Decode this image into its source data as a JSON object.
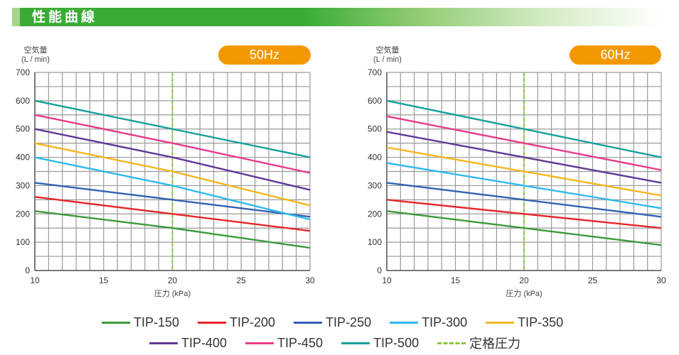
{
  "header": {
    "title": "性能曲線"
  },
  "legend": [
    {
      "name": "TIP-150",
      "color": "#3a9b3a"
    },
    {
      "name": "TIP-200",
      "color": "#e8262a"
    },
    {
      "name": "TIP-250",
      "color": "#2f62b3"
    },
    {
      "name": "TIP-300",
      "color": "#2fb9ee"
    },
    {
      "name": "TIP-350",
      "color": "#f6b51e"
    },
    {
      "name": "TIP-400",
      "color": "#63389a"
    },
    {
      "name": "TIP-450",
      "color": "#e83a8c"
    },
    {
      "name": "TIP-500",
      "color": "#14a19b"
    },
    {
      "name": "定格圧力",
      "color": "#8cc63f",
      "dashed": true
    }
  ],
  "chart_data": [
    {
      "type": "line",
      "title": "50Hz",
      "ylabel_line1": "空気量",
      "ylabel_line2": "(L / min)",
      "xlabel": "圧力 (kPa)",
      "xlim": [
        10,
        30
      ],
      "ylim": [
        0,
        700
      ],
      "xticks": [
        10,
        15,
        20,
        25,
        30
      ],
      "yticks": [
        0,
        100,
        200,
        300,
        400,
        500,
        600,
        700
      ],
      "grid": true,
      "rated_pressure": 20,
      "x": [
        10,
        20,
        30
      ],
      "series": [
        {
          "name": "TIP-150",
          "values": [
            210,
            150,
            80
          ]
        },
        {
          "name": "TIP-200",
          "values": [
            260,
            200,
            140
          ]
        },
        {
          "name": "TIP-250",
          "values": [
            310,
            250,
            190
          ]
        },
        {
          "name": "TIP-300",
          "values": [
            400,
            300,
            180
          ]
        },
        {
          "name": "TIP-350",
          "values": [
            450,
            350,
            230
          ]
        },
        {
          "name": "TIP-400",
          "values": [
            500,
            400,
            285
          ]
        },
        {
          "name": "TIP-450",
          "values": [
            550,
            450,
            345
          ]
        },
        {
          "name": "TIP-500",
          "values": [
            600,
            500,
            400
          ]
        }
      ]
    },
    {
      "type": "line",
      "title": "60Hz",
      "ylabel_line1": "空気量",
      "ylabel_line2": "(L / min)",
      "xlabel": "圧力 (kPa)",
      "xlim": [
        10,
        30
      ],
      "ylim": [
        0,
        700
      ],
      "xticks": [
        10,
        15,
        20,
        25,
        30
      ],
      "yticks": [
        0,
        100,
        200,
        300,
        400,
        500,
        600,
        700
      ],
      "grid": true,
      "rated_pressure": 20,
      "x": [
        10,
        20,
        30
      ],
      "series": [
        {
          "name": "TIP-150",
          "values": [
            210,
            150,
            90
          ]
        },
        {
          "name": "TIP-200",
          "values": [
            250,
            200,
            150
          ]
        },
        {
          "name": "TIP-250",
          "values": [
            310,
            250,
            190
          ]
        },
        {
          "name": "TIP-300",
          "values": [
            380,
            300,
            220
          ]
        },
        {
          "name": "TIP-350",
          "values": [
            435,
            350,
            265
          ]
        },
        {
          "name": "TIP-400",
          "values": [
            490,
            400,
            310
          ]
        },
        {
          "name": "TIP-450",
          "values": [
            545,
            450,
            355
          ]
        },
        {
          "name": "TIP-500",
          "values": [
            600,
            500,
            400
          ]
        }
      ]
    }
  ]
}
